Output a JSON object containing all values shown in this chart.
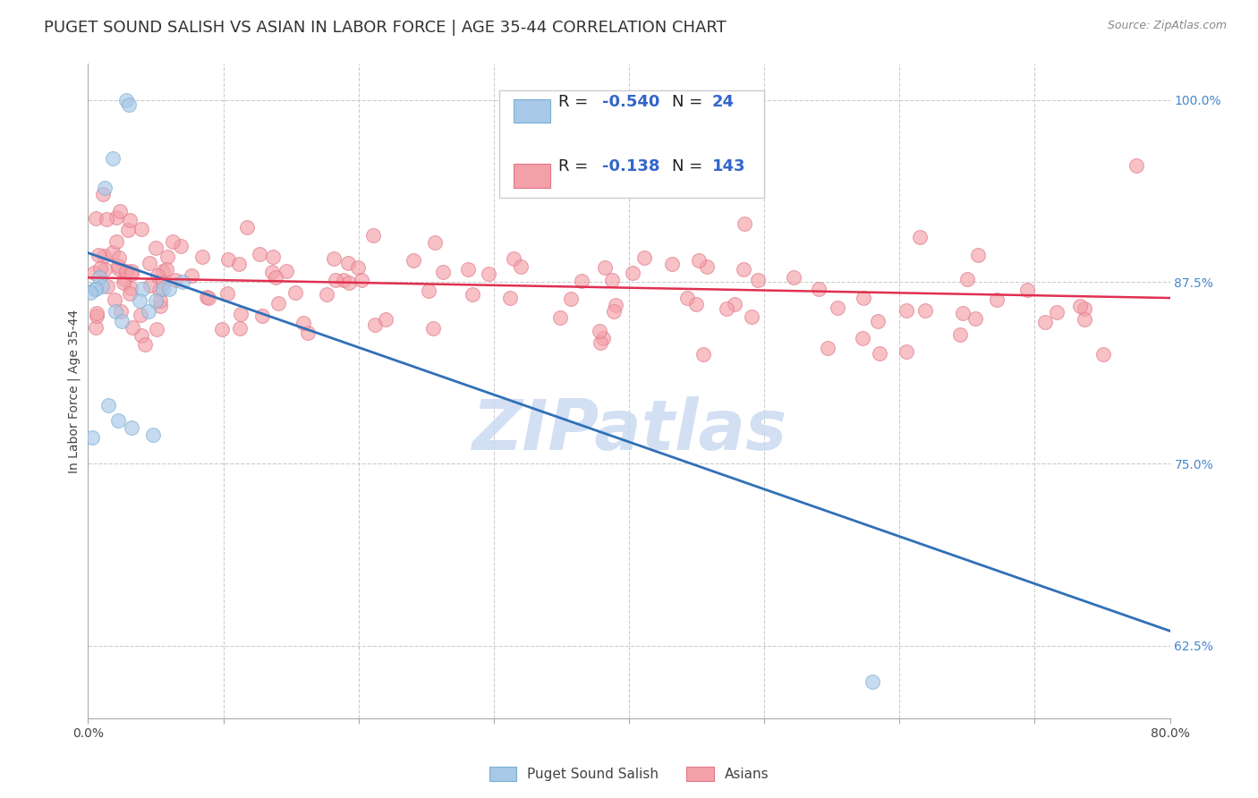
{
  "title": "PUGET SOUND SALISH VS ASIAN IN LABOR FORCE | AGE 35-44 CORRELATION CHART",
  "source": "Source: ZipAtlas.com",
  "ylabel": "In Labor Force | Age 35-44",
  "xlim": [
    0.0,
    0.8
  ],
  "ylim": [
    0.575,
    1.025
  ],
  "yticks_right": [
    0.625,
    0.75,
    0.875,
    1.0
  ],
  "ytick_right_labels": [
    "62.5%",
    "75.0%",
    "87.5%",
    "100.0%"
  ],
  "blue_fill": "#a8c8e8",
  "pink_fill": "#f4a0a8",
  "blue_edge": "#7aaed0",
  "pink_edge": "#e07888",
  "blue_line_color": "#3070b8",
  "pink_line_color": "#e03050",
  "watermark": "ZIPatlas",
  "watermark_color": "#c8d8f0",
  "bg_color": "#ffffff",
  "grid_color": "#cccccc",
  "title_fontsize": 13,
  "axis_label_fontsize": 10,
  "tick_fontsize": 10,
  "legend_fontsize": 13,
  "blue_x": [
    0.028,
    0.03,
    0.018,
    0.012,
    0.008,
    0.01,
    0.005,
    0.006,
    0.02,
    0.025,
    0.04,
    0.038,
    0.055,
    0.06,
    0.045,
    0.05,
    0.015,
    0.022,
    0.032,
    0.048,
    0.58,
    0.003,
    0.07,
    0.002
  ],
  "blue_y": [
    1.0,
    0.997,
    0.96,
    0.94,
    0.878,
    0.872,
    0.87,
    0.87,
    0.855,
    0.848,
    0.87,
    0.862,
    0.87,
    0.87,
    0.855,
    0.862,
    0.79,
    0.78,
    0.775,
    0.77,
    0.6,
    0.768,
    0.875,
    0.868
  ],
  "blue_trend_x": [
    0.0,
    0.8
  ],
  "blue_trend_y": [
    0.895,
    0.635
  ],
  "pink_trend_x": [
    0.0,
    0.8
  ],
  "pink_trend_y": [
    0.878,
    0.864
  ]
}
